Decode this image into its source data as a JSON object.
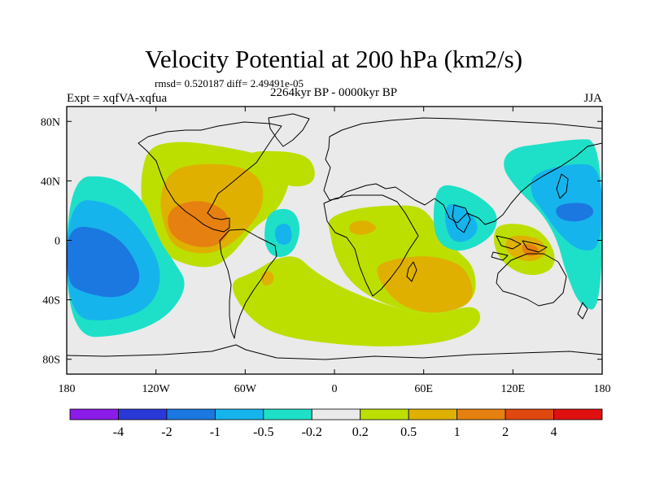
{
  "chart_data": {
    "type": "heatmap",
    "title": "Velocity Potential at 200 hPa (km2/s)",
    "stats_line": "rmsd= 0.520187 diff= 2.49491e-05",
    "period_label": "2264kyr BP - 0000kyr BP",
    "experiment_label": "Expt = xqfVA-xqfua",
    "season_label": "JJA",
    "x_ticks": [
      {
        "value": -180,
        "label": "180"
      },
      {
        "value": -120,
        "label": "120W"
      },
      {
        "value": -60,
        "label": "60W"
      },
      {
        "value": 0,
        "label": "0"
      },
      {
        "value": 60,
        "label": "60E"
      },
      {
        "value": 120,
        "label": "120E"
      },
      {
        "value": 180,
        "label": "180"
      }
    ],
    "y_ticks": [
      {
        "value": 80,
        "label": "80N"
      },
      {
        "value": 40,
        "label": "40N"
      },
      {
        "value": 0,
        "label": "0"
      },
      {
        "value": -40,
        "label": "40S"
      },
      {
        "value": -80,
        "label": "80S"
      }
    ],
    "xlim": [
      -180,
      180
    ],
    "ylim": [
      -90,
      90
    ],
    "colorbar": {
      "levels": [
        "-4",
        "-2",
        "-1",
        "-0.5",
        "-0.2",
        "0.2",
        "0.5",
        "1",
        "2",
        "4"
      ],
      "colors": [
        "#8a1be8",
        "#2a38d8",
        "#1a78e0",
        "#16b4ec",
        "#1ee0c8",
        "#eaeaea",
        "#bcdf00",
        "#e0b000",
        "#e68010",
        "#e04810",
        "#e01010"
      ]
    },
    "contour_regions": [
      {
        "name": "west-atlantic-positive",
        "level": "0.2-0.5",
        "color": "#bcdf00",
        "points": [
          [
            -125,
            63
          ],
          [
            -105,
            67
          ],
          [
            -80,
            64
          ],
          [
            -50,
            58
          ],
          [
            -30,
            50
          ],
          [
            -30,
            38
          ],
          [
            -38,
            20
          ],
          [
            -55,
            8
          ],
          [
            -65,
            -5
          ],
          [
            -70,
            -10
          ],
          [
            -80,
            -18
          ],
          [
            -95,
            -18
          ],
          [
            -115,
            -10
          ],
          [
            -125,
            5
          ],
          [
            -130,
            25
          ],
          [
            -130,
            45
          ]
        ]
      },
      {
        "name": "north-atlantic-ext",
        "level": "0.2-0.5",
        "color": "#bcdf00",
        "points": [
          [
            -60,
            60
          ],
          [
            -30,
            60
          ],
          [
            -15,
            55
          ],
          [
            -12,
            40
          ],
          [
            -25,
            35
          ],
          [
            -40,
            40
          ],
          [
            -55,
            50
          ]
        ]
      },
      {
        "name": "west-atlantic-0.5",
        "level": "0.5-1",
        "color": "#e0b000",
        "points": [
          [
            -110,
            48
          ],
          [
            -88,
            52
          ],
          [
            -62,
            50
          ],
          [
            -48,
            40
          ],
          [
            -48,
            22
          ],
          [
            -58,
            8
          ],
          [
            -72,
            -5
          ],
          [
            -88,
            -10
          ],
          [
            -108,
            -5
          ],
          [
            -115,
            10
          ],
          [
            -118,
            30
          ]
        ]
      },
      {
        "name": "central-america-1",
        "level": "1-2",
        "color": "#e68010",
        "points": [
          [
            -112,
            22
          ],
          [
            -90,
            28
          ],
          [
            -72,
            20
          ],
          [
            -70,
            5
          ],
          [
            -80,
            -5
          ],
          [
            -98,
            -4
          ],
          [
            -112,
            5
          ]
        ]
      },
      {
        "name": "south-band-positive",
        "level": "0.2-0.5",
        "color": "#bcdf00",
        "points": [
          [
            -72,
            -28
          ],
          [
            -60,
            -50
          ],
          [
            -40,
            -64
          ],
          [
            0,
            -70
          ],
          [
            40,
            -72
          ],
          [
            80,
            -68
          ],
          [
            100,
            -56
          ],
          [
            95,
            -42
          ],
          [
            65,
            -52
          ],
          [
            30,
            -42
          ],
          [
            5,
            -32
          ],
          [
            -15,
            -20
          ],
          [
            -25,
            -10
          ],
          [
            -40,
            -12
          ],
          [
            -55,
            -22
          ]
        ]
      },
      {
        "name": "africa-indian-positive",
        "level": "0.2-0.5",
        "color": "#bcdf00",
        "points": [
          [
            -5,
            15
          ],
          [
            15,
            22
          ],
          [
            45,
            24
          ],
          [
            60,
            22
          ],
          [
            70,
            8
          ],
          [
            80,
            -5
          ],
          [
            95,
            -18
          ],
          [
            95,
            -42
          ],
          [
            65,
            -52
          ],
          [
            30,
            -42
          ],
          [
            10,
            -28
          ],
          [
            0,
            -10
          ],
          [
            -3,
            5
          ]
        ]
      },
      {
        "name": "indian-ocean-0.5",
        "level": "0.5-1",
        "color": "#e0b000",
        "points": [
          [
            30,
            -15
          ],
          [
            55,
            -10
          ],
          [
            75,
            -12
          ],
          [
            90,
            -20
          ],
          [
            95,
            -42
          ],
          [
            70,
            -50
          ],
          [
            48,
            -46
          ],
          [
            35,
            -35
          ],
          [
            28,
            -22
          ]
        ]
      },
      {
        "name": "sahara-0.5",
        "level": "0.5-1",
        "color": "#e0b000",
        "points": [
          [
            10,
            12
          ],
          [
            22,
            14
          ],
          [
            30,
            8
          ],
          [
            20,
            3
          ],
          [
            10,
            5
          ]
        ]
      },
      {
        "name": "south-america-small",
        "level": "0.5-1",
        "color": "#e0b000",
        "points": [
          [
            -50,
            -22
          ],
          [
            -42,
            -20
          ],
          [
            -40,
            -28
          ],
          [
            -48,
            -32
          ]
        ]
      },
      {
        "name": "maritime-continent-positive",
        "level": "0.2-0.5",
        "color": "#bcdf00",
        "points": [
          [
            110,
            12
          ],
          [
            135,
            10
          ],
          [
            148,
            -5
          ],
          [
            148,
            -20
          ],
          [
            130,
            -25
          ],
          [
            112,
            -15
          ],
          [
            106,
            0
          ]
        ]
      },
      {
        "name": "maritime-continent-0.5",
        "level": "0.5-1",
        "color": "#e0b000",
        "points": [
          [
            118,
            4
          ],
          [
            138,
            2
          ],
          [
            144,
            -8
          ],
          [
            134,
            -15
          ],
          [
            120,
            -12
          ],
          [
            114,
            -4
          ]
        ]
      },
      {
        "name": "maritime-continent-1",
        "level": "1-2",
        "color": "#e68010",
        "points": [
          [
            125,
            -2
          ],
          [
            136,
            -3
          ],
          [
            138,
            -10
          ],
          [
            128,
            -11
          ]
        ]
      },
      {
        "name": "east-pacific-negative",
        "level": "-0.5--0.2",
        "color": "#1ee0c8",
        "points": [
          [
            -180,
            42
          ],
          [
            -150,
            44
          ],
          [
            -128,
            28
          ],
          [
            -118,
            0
          ],
          [
            -108,
            -14
          ],
          [
            -98,
            -30
          ],
          [
            -112,
            -52
          ],
          [
            -140,
            -64
          ],
          [
            -180,
            -66
          ]
        ]
      },
      {
        "name": "east-pacific-0.5",
        "level": "-1--0.5",
        "color": "#16b4ec",
        "points": [
          [
            -180,
            28
          ],
          [
            -150,
            26
          ],
          [
            -130,
            8
          ],
          [
            -115,
            -20
          ],
          [
            -122,
            -45
          ],
          [
            -150,
            -55
          ],
          [
            -180,
            -52
          ]
        ]
      },
      {
        "name": "east-pacific-1",
        "level": "-2--1",
        "color": "#1a78e0",
        "points": [
          [
            -180,
            10
          ],
          [
            -155,
            8
          ],
          [
            -138,
            -5
          ],
          [
            -128,
            -28
          ],
          [
            -145,
            -40
          ],
          [
            -170,
            -35
          ],
          [
            -180,
            -28
          ]
        ]
      },
      {
        "name": "south-atlantic-negative",
        "level": "-0.5--0.2",
        "color": "#1ee0c8",
        "points": [
          [
            -45,
            20
          ],
          [
            -28,
            22
          ],
          [
            -22,
            8
          ],
          [
            -28,
            -10
          ],
          [
            -42,
            -12
          ],
          [
            -48,
            0
          ]
        ]
      },
      {
        "name": "south-atlantic-0.5",
        "level": "-1--0.5",
        "color": "#16b4ec",
        "points": [
          [
            -40,
            10
          ],
          [
            -30,
            12
          ],
          [
            -28,
            0
          ],
          [
            -34,
            -4
          ],
          [
            -40,
            0
          ]
        ]
      },
      {
        "name": "arabia-negative",
        "level": "-0.5--0.2",
        "color": "#1ee0c8",
        "points": [
          [
            70,
            38
          ],
          [
            85,
            36
          ],
          [
            100,
            28
          ],
          [
            110,
            18
          ],
          [
            108,
            5
          ],
          [
            95,
            -5
          ],
          [
            80,
            -8
          ],
          [
            68,
            0
          ],
          [
            66,
            20
          ]
        ]
      },
      {
        "name": "arabia-0.5",
        "level": "-1--0.5",
        "color": "#16b4ec",
        "points": [
          [
            75,
            26
          ],
          [
            88,
            22
          ],
          [
            98,
            10
          ],
          [
            92,
            0
          ],
          [
            80,
            -2
          ],
          [
            74,
            10
          ]
        ]
      },
      {
        "name": "nw-pacific-negative",
        "level": "-0.5--0.2",
        "color": "#1ee0c8",
        "points": [
          [
            118,
            62
          ],
          [
            140,
            65
          ],
          [
            160,
            68
          ],
          [
            180,
            68
          ],
          [
            180,
            -48
          ],
          [
            165,
            -45
          ],
          [
            155,
            -20
          ],
          [
            150,
            0
          ],
          [
            140,
            18
          ],
          [
            122,
            35
          ],
          [
            112,
            50
          ]
        ]
      },
      {
        "name": "nw-pacific-0.5",
        "level": "-1--0.5",
        "color": "#16b4ec",
        "points": [
          [
            132,
            45
          ],
          [
            160,
            52
          ],
          [
            180,
            50
          ],
          [
            180,
            -5
          ],
          [
            165,
            -8
          ],
          [
            150,
            5
          ],
          [
            140,
            20
          ],
          [
            132,
            30
          ]
        ]
      },
      {
        "name": "nw-pacific-1",
        "level": "-2--1",
        "color": "#1a78e0",
        "points": [
          [
            148,
            24
          ],
          [
            170,
            26
          ],
          [
            176,
            18
          ],
          [
            165,
            12
          ],
          [
            150,
            14
          ]
        ]
      }
    ]
  }
}
